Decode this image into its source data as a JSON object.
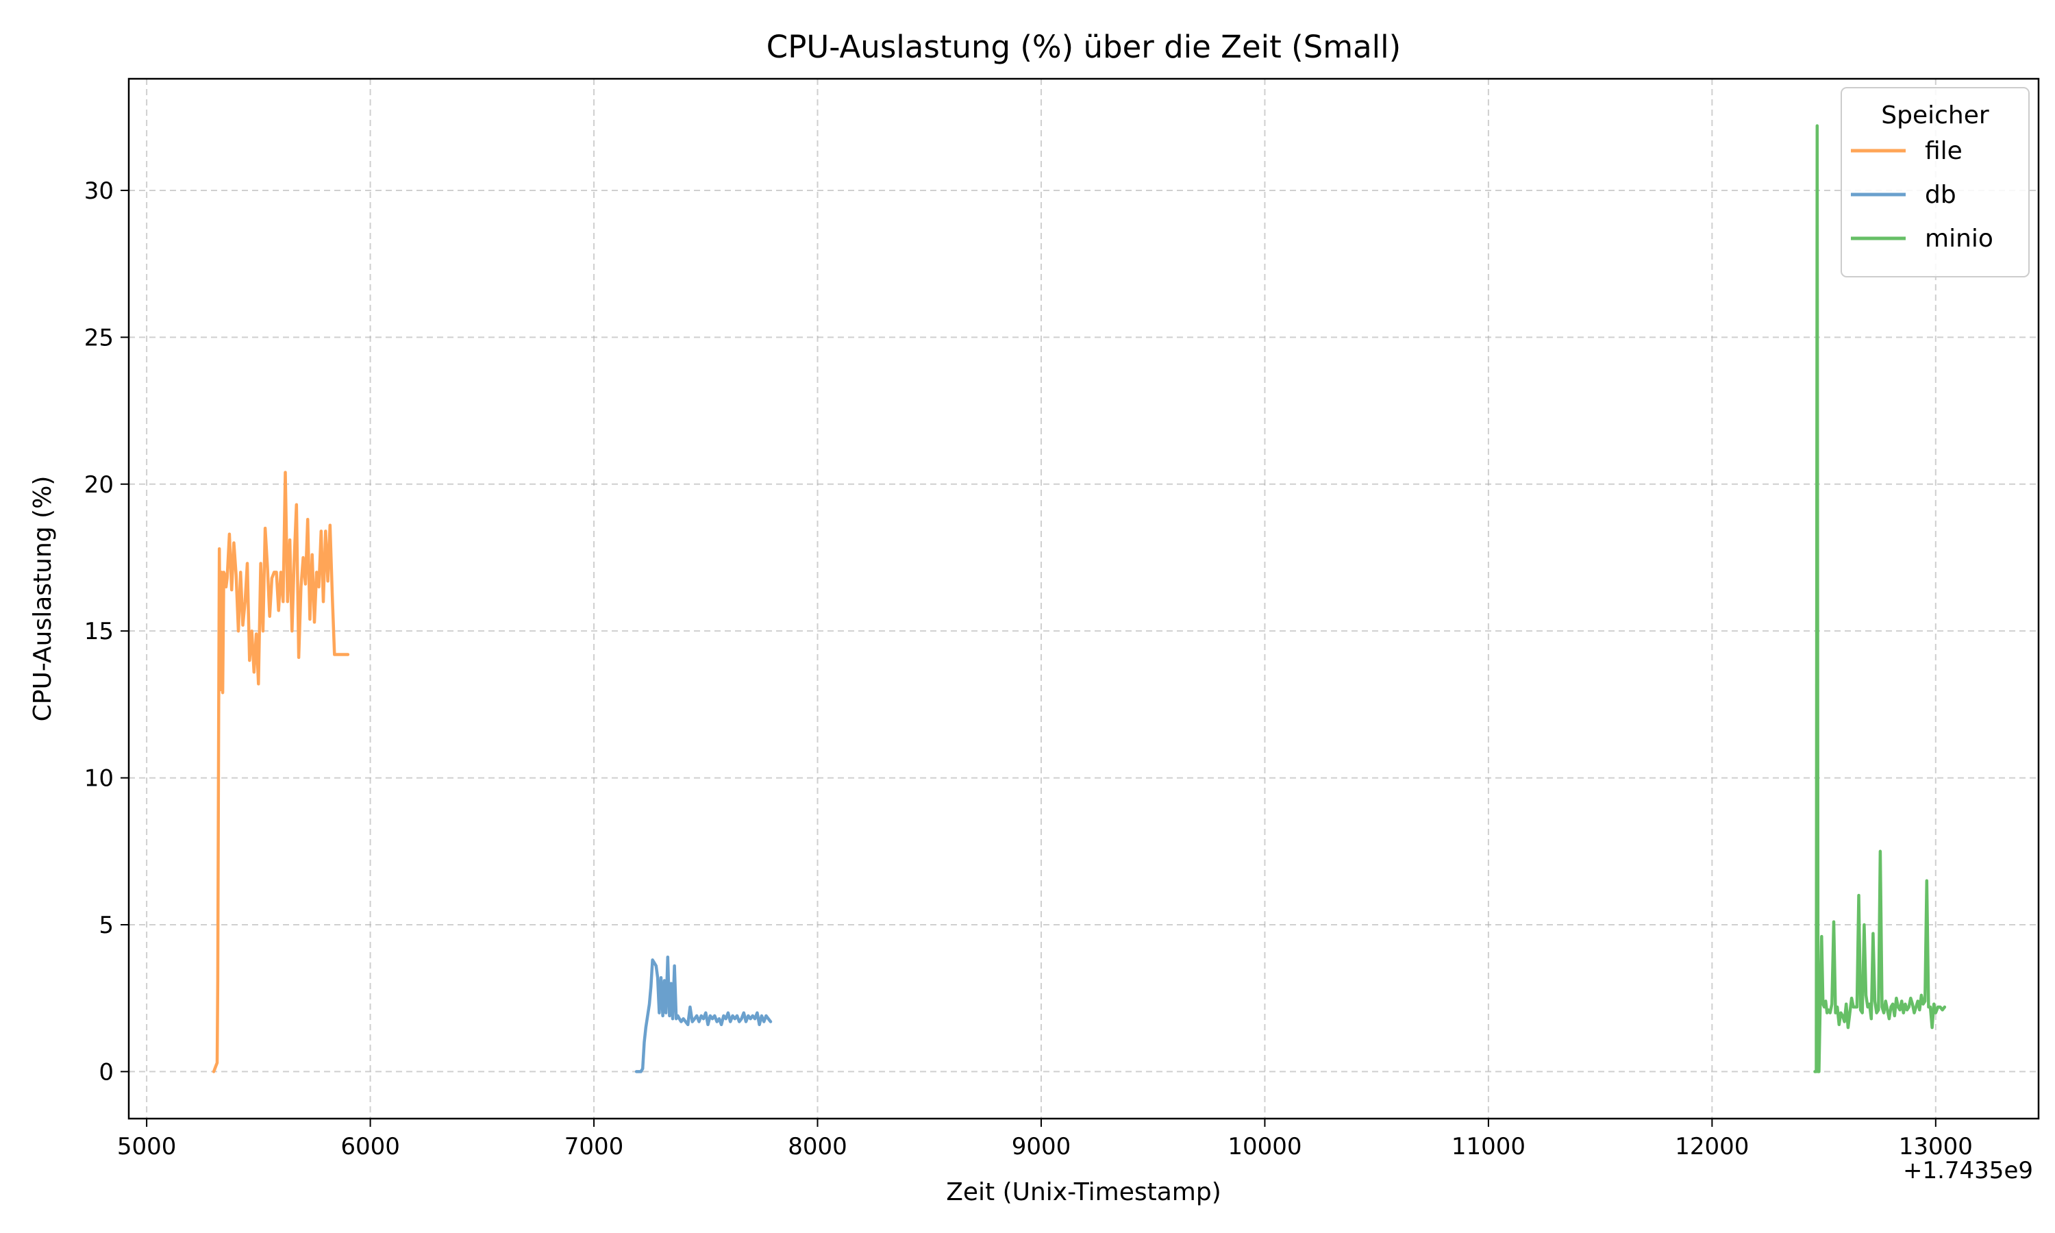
{
  "chart_data": {
    "type": "line",
    "title": "CPU-Auslastung (%) über die Zeit (Small)",
    "xlabel": "Zeit (Unix-Timestamp)",
    "ylabel": "CPU-Auslastung (%)",
    "x_offset_label": "+1.7435e9",
    "xlim": [
      4920,
      13460
    ],
    "ylim": [
      -1.6,
      33.8
    ],
    "x_ticks": [
      5000,
      6000,
      7000,
      8000,
      9000,
      10000,
      11000,
      12000,
      13000
    ],
    "y_ticks": [
      0,
      5,
      10,
      15,
      20,
      25,
      30
    ],
    "grid": true,
    "legend": {
      "title": "Speicher",
      "placement": "top-right"
    },
    "series": [
      {
        "name": "file",
        "color": "#ffa557",
        "x": [
          5300,
          5310,
          5315,
          5318,
          5322,
          5325,
          5330,
          5335,
          5340,
          5345,
          5350,
          5355,
          5360,
          5370,
          5380,
          5390,
          5400,
          5410,
          5420,
          5430,
          5440,
          5450,
          5460,
          5470,
          5480,
          5490,
          5500,
          5510,
          5520,
          5530,
          5540,
          5550,
          5560,
          5570,
          5580,
          5590,
          5600,
          5610,
          5620,
          5630,
          5640,
          5650,
          5660,
          5670,
          5680,
          5690,
          5700,
          5710,
          5720,
          5730,
          5740,
          5750,
          5760,
          5770,
          5780,
          5790,
          5800,
          5810,
          5820,
          5830,
          5840,
          5850,
          5860,
          5870,
          5880,
          5890,
          5900
        ],
        "y": [
          0.0,
          0.2,
          0.3,
          3.1,
          12.0,
          17.8,
          13.0,
          17.0,
          12.9,
          17.0,
          16.9,
          16.5,
          16.8,
          18.3,
          16.4,
          18.0,
          16.9,
          15.0,
          17.0,
          15.2,
          16.0,
          17.3,
          14.0,
          15.0,
          13.6,
          14.9,
          13.2,
          17.3,
          15.0,
          18.5,
          17.2,
          15.5,
          16.8,
          17.0,
          17.0,
          15.7,
          17.0,
          16.0,
          20.4,
          16.0,
          18.1,
          15.0,
          17.5,
          19.3,
          14.1,
          16.5,
          17.5,
          16.6,
          18.8,
          15.4,
          17.6,
          15.3,
          17.0,
          16.5,
          18.4,
          16.0,
          18.4,
          16.7,
          18.6,
          16.2,
          14.2,
          14.2,
          14.2,
          14.2,
          14.2,
          14.2,
          14.2
        ]
      },
      {
        "name": "db",
        "color": "#6aa0cd",
        "x": [
          7190,
          7200,
          7210,
          7218,
          7225,
          7232,
          7240,
          7248,
          7255,
          7262,
          7270,
          7278,
          7285,
          7292,
          7300,
          7308,
          7315,
          7322,
          7330,
          7338,
          7345,
          7352,
          7360,
          7368,
          7375,
          7382,
          7390,
          7400,
          7410,
          7420,
          7430,
          7440,
          7450,
          7460,
          7470,
          7480,
          7490,
          7500,
          7510,
          7520,
          7530,
          7540,
          7550,
          7560,
          7570,
          7580,
          7590,
          7600,
          7610,
          7620,
          7630,
          7640,
          7650,
          7660,
          7670,
          7680,
          7690,
          7700,
          7710,
          7720,
          7730,
          7740,
          7750,
          7760,
          7770,
          7780,
          7790
        ],
        "y": [
          0.0,
          0.0,
          0.0,
          0.1,
          1.0,
          1.5,
          1.9,
          2.3,
          2.9,
          3.8,
          3.7,
          3.6,
          3.2,
          2.0,
          3.2,
          1.9,
          3.1,
          2.0,
          3.9,
          1.9,
          3.0,
          1.8,
          3.6,
          1.8,
          1.9,
          1.8,
          1.7,
          1.8,
          1.7,
          1.6,
          2.2,
          1.7,
          1.8,
          1.9,
          1.7,
          1.9,
          1.8,
          2.0,
          1.6,
          1.9,
          1.8,
          1.9,
          1.7,
          1.8,
          1.6,
          1.9,
          1.8,
          2.0,
          1.7,
          1.9,
          1.8,
          1.9,
          1.7,
          1.8,
          2.0,
          1.7,
          1.9,
          1.8,
          1.9,
          1.8,
          2.0,
          1.6,
          1.9,
          1.7,
          1.9,
          1.8,
          1.7
        ]
      },
      {
        "name": "minio",
        "color": "#66bf66",
        "x": [
          12460,
          12466,
          12470,
          12474,
          12478,
          12484,
          12490,
          12496,
          12502,
          12508,
          12514,
          12520,
          12528,
          12536,
          12544,
          12552,
          12560,
          12568,
          12576,
          12584,
          12592,
          12600,
          12608,
          12616,
          12624,
          12632,
          12640,
          12648,
          12656,
          12664,
          12672,
          12680,
          12688,
          12696,
          12704,
          12712,
          12720,
          12728,
          12736,
          12744,
          12752,
          12760,
          12768,
          12776,
          12784,
          12792,
          12800,
          12808,
          12816,
          12824,
          12832,
          12840,
          12848,
          12856,
          12864,
          12872,
          12880,
          12888,
          12896,
          12904,
          12912,
          12920,
          12928,
          12936,
          12944,
          12952,
          12960,
          12968,
          12976,
          12984,
          12992,
          13000,
          13010,
          13020,
          13030,
          13040
        ],
        "y": [
          0.0,
          0.0,
          32.2,
          0.0,
          0.0,
          2.5,
          4.6,
          2.3,
          2.2,
          2.4,
          2.0,
          2.1,
          2.0,
          2.3,
          5.1,
          2.0,
          2.2,
          1.6,
          2.0,
          1.9,
          1.7,
          2.3,
          1.5,
          2.0,
          2.5,
          2.2,
          2.2,
          2.2,
          6.0,
          2.1,
          2.0,
          5.0,
          2.6,
          2.2,
          2.3,
          1.8,
          4.7,
          2.4,
          2.0,
          2.1,
          7.5,
          2.2,
          2.0,
          2.4,
          2.1,
          1.8,
          2.2,
          2.3,
          1.9,
          2.5,
          2.2,
          2.1,
          2.4,
          2.0,
          2.3,
          2.1,
          2.2,
          2.5,
          2.3,
          2.0,
          2.2,
          2.4,
          2.1,
          2.6,
          2.3,
          2.4,
          6.5,
          2.2,
          2.2,
          1.5,
          2.3,
          2.0,
          2.2,
          2.2,
          2.1,
          2.2
        ]
      }
    ]
  }
}
